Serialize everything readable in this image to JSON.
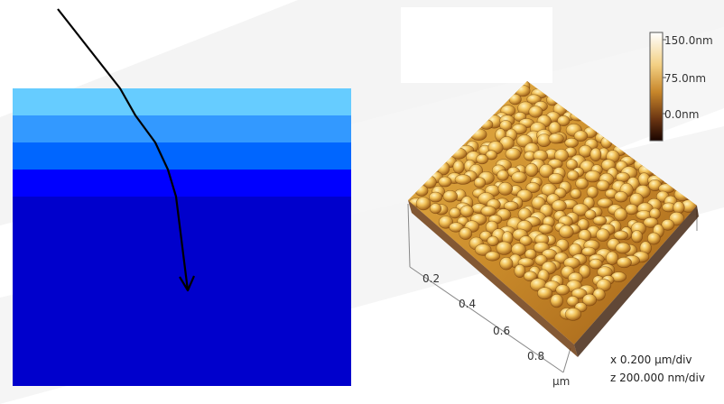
{
  "colors": {
    "layer_1": "#66ccff",
    "layer_2": "#3399ff",
    "layer_3": "#0066ff",
    "layer_4": "#0000ff",
    "substrate": "#0000cc",
    "ray": "#000000"
  },
  "afm": {
    "color_scale": {
      "top_label": "150.0nm",
      "mid_label": "75.0nm",
      "bottom_label": "0.0nm",
      "colors": [
        "#ffffff",
        "#f3d083",
        "#c7862a",
        "#6b3512",
        "#1a0500"
      ]
    },
    "axis": {
      "ticks": [
        "0.2",
        "0.4",
        "0.6",
        "0.8"
      ],
      "unit": "μm"
    },
    "scale_info": {
      "x": "x 0.200 μm/div",
      "z": "z 200.000 nm/div"
    }
  }
}
